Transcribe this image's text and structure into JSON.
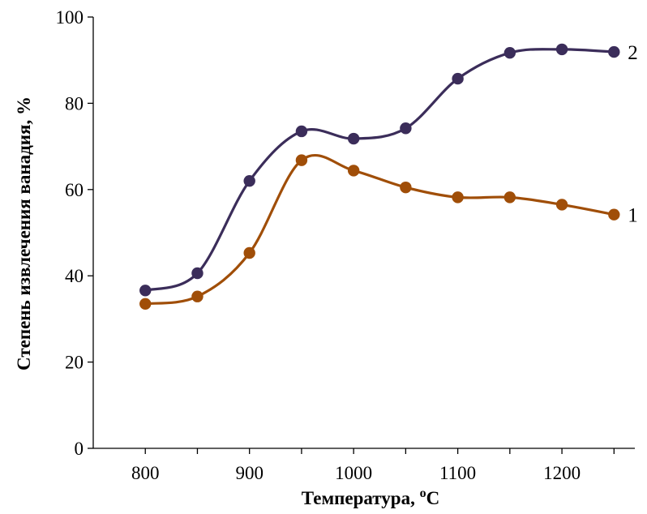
{
  "chart_data": {
    "type": "line",
    "xlabel": "Температура, ",
    "xlabel_sup": "o",
    "xlabel_unit": "C",
    "ylabel": "Степень извлечения ванадия, %",
    "xlim": [
      750,
      1270
    ],
    "ylim": [
      0,
      100
    ],
    "x_ticks": [
      800,
      900,
      1000,
      1100,
      1200
    ],
    "x_minor_ticks": [
      850,
      950,
      1050,
      1150,
      1250
    ],
    "y_ticks": [
      0,
      20,
      40,
      60,
      80,
      100
    ],
    "x": [
      800,
      850,
      900,
      950,
      1000,
      1050,
      1100,
      1150,
      1200,
      1250
    ],
    "series": [
      {
        "label": "1",
        "color": "#a04e08",
        "values": [
          33.5,
          35.2,
          45.3,
          66.8,
          64.4,
          60.5,
          58.2,
          58.2,
          56.5,
          54.2
        ]
      },
      {
        "label": "2",
        "color": "#3b2d5a",
        "values": [
          36.6,
          40.6,
          62.0,
          73.5,
          71.8,
          74.2,
          85.7,
          91.7,
          92.5,
          91.9
        ]
      }
    ],
    "grid": false,
    "smooth": true
  }
}
